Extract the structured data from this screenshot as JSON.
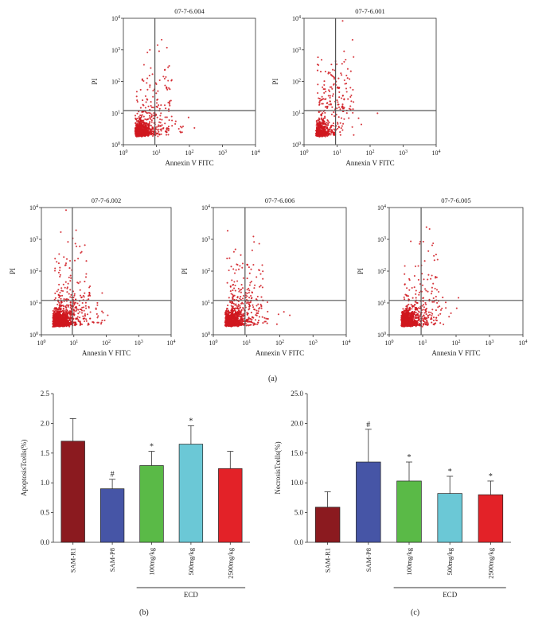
{
  "figure": {
    "label_a": "(a)",
    "label_b": "(b)",
    "label_c": "(c)"
  },
  "chart_data": [
    {
      "type": "scatter",
      "id": "flow-1",
      "title": "07-7-6.004",
      "xlabel": "Annexin V FITC",
      "ylabel": "PI",
      "scale": "log",
      "xlim": [
        1,
        10000
      ],
      "ylim": [
        1,
        10000
      ],
      "gate_x": 9,
      "gate_y": 12,
      "x_ticks": [
        "10^0",
        "10^1",
        "10^2",
        "10^3",
        "10^4"
      ],
      "y_ticks": [
        "10^0",
        "10^1",
        "10^2",
        "10^3",
        "10^4"
      ],
      "events": {
        "cluster": 650,
        "spread": 200,
        "upper": 70
      },
      "point_color": "#d0181f",
      "seed": 11
    },
    {
      "type": "scatter",
      "id": "flow-2",
      "title": "07-7-6.001",
      "xlabel": "Annexin V FITC",
      "ylabel": "PI",
      "scale": "log",
      "xlim": [
        1,
        10000
      ],
      "ylim": [
        1,
        10000
      ],
      "gate_x": 9,
      "gate_y": 12,
      "x_ticks": [
        "10^0",
        "10^1",
        "10^2",
        "10^3",
        "10^4"
      ],
      "y_ticks": [
        "10^0",
        "10^1",
        "10^2",
        "10^3",
        "10^4"
      ],
      "events": {
        "cluster": 420,
        "spread": 60,
        "upper": 140
      },
      "point_color": "#d0181f",
      "seed": 23
    },
    {
      "type": "scatter",
      "id": "flow-3",
      "title": "07-7-6.002",
      "xlabel": "Annexin V FITC",
      "ylabel": "PI",
      "scale": "log",
      "xlim": [
        1,
        10000
      ],
      "ylim": [
        1,
        10000
      ],
      "gate_x": 9,
      "gate_y": 12,
      "x_ticks": [
        "10^0",
        "10^1",
        "10^2",
        "10^3",
        "10^4"
      ],
      "y_ticks": [
        "10^0",
        "10^1",
        "10^2",
        "10^3",
        "10^4"
      ],
      "events": {
        "cluster": 1100,
        "spread": 260,
        "upper": 90
      },
      "point_color": "#d0181f",
      "seed": 37
    },
    {
      "type": "scatter",
      "id": "flow-4",
      "title": "07-7-6.006",
      "xlabel": "Annexin V FITC",
      "ylabel": "PI",
      "scale": "log",
      "xlim": [
        1,
        10000
      ],
      "ylim": [
        1,
        10000
      ],
      "gate_x": 9,
      "gate_y": 12,
      "x_ticks": [
        "10^0",
        "10^1",
        "10^2",
        "10^3",
        "10^4"
      ],
      "y_ticks": [
        "10^0",
        "10^1",
        "10^2",
        "10^3",
        "10^4"
      ],
      "events": {
        "cluster": 700,
        "spread": 260,
        "upper": 80
      },
      "point_color": "#d0181f",
      "seed": 41
    },
    {
      "type": "scatter",
      "id": "flow-5",
      "title": "07-7-6.005",
      "xlabel": "Annexin V FITC",
      "ylabel": "PI",
      "scale": "log",
      "xlim": [
        1,
        10000
      ],
      "ylim": [
        1,
        10000
      ],
      "gate_x": 9,
      "gate_y": 12,
      "x_ticks": [
        "10^0",
        "10^1",
        "10^2",
        "10^3",
        "10^4"
      ],
      "y_ticks": [
        "10^0",
        "10^1",
        "10^2",
        "10^3",
        "10^4"
      ],
      "events": {
        "cluster": 750,
        "spread": 240,
        "upper": 60
      },
      "point_color": "#d0181f",
      "seed": 53
    },
    {
      "type": "bar",
      "id": "bar-apoptosis",
      "ylabel": "ApoptosisTcells(%)",
      "ylim": [
        0,
        2.5
      ],
      "y_ticks": [
        "0.0",
        "0.5",
        "1.0",
        "1.5",
        "2.0",
        "2.5"
      ],
      "categories": [
        "SAM-R1",
        "SAM-P8",
        "100mg/kg",
        "500mg/kg",
        "2500mg/kg"
      ],
      "values": [
        1.7,
        0.9,
        1.29,
        1.65,
        1.24
      ],
      "errors": [
        0.38,
        0.16,
        0.24,
        0.31,
        0.29
      ],
      "marks": [
        "",
        "#",
        "*",
        "*",
        ""
      ],
      "colors": [
        "#8b1a1f",
        "#4655a6",
        "#5aba47",
        "#6bc8d6",
        "#e32228"
      ],
      "group_label": "ECD",
      "group_from": 2,
      "group_to": 4
    },
    {
      "type": "bar",
      "id": "bar-necrosis",
      "ylabel": "NecrosisTcells(%)",
      "ylim": [
        0,
        25
      ],
      "y_ticks": [
        "0.0",
        "5.0",
        "10.0",
        "15.0",
        "20.0",
        "25.0"
      ],
      "categories": [
        "SAM-R1",
        "SAM-P8",
        "100mg/kg",
        "500mg/kg",
        "2500mg/kg"
      ],
      "values": [
        5.9,
        13.5,
        10.3,
        8.2,
        8.0
      ],
      "errors": [
        2.6,
        5.5,
        3.2,
        2.9,
        2.3
      ],
      "marks": [
        "",
        "#",
        "*",
        "*",
        "*"
      ],
      "colors": [
        "#8b1a1f",
        "#4655a6",
        "#5aba47",
        "#6bc8d6",
        "#e32228"
      ],
      "group_label": "ECD",
      "group_from": 2,
      "group_to": 4
    }
  ]
}
